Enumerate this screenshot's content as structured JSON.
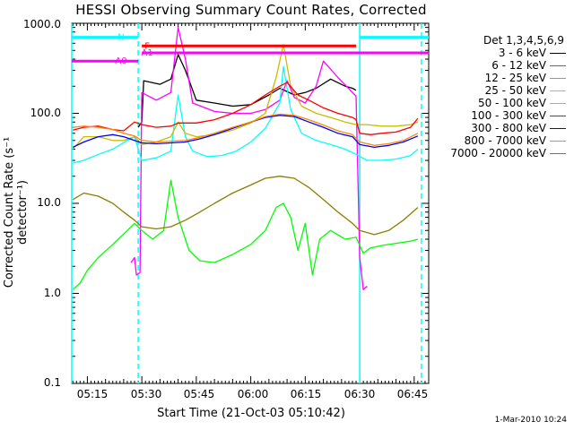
{
  "chart_data": {
    "type": "line",
    "title": "HESSI Observing Summary Count Rates, Corrected",
    "xlabel": "Start Time (21-Oct-03 05:10:42)",
    "ylabel": "Corrected Count Rate (s⁻¹ detector⁻¹)",
    "yscale": "log",
    "ylim": [
      0.1,
      1000
    ],
    "xlim": [
      "05:10:42",
      "06:49"
    ],
    "yticks": [
      "1000.0",
      "100.0",
      "10.0",
      "1.0",
      "0.1"
    ],
    "xticks": [
      "05:15",
      "05:30",
      "05:45",
      "06:00",
      "06:15",
      "06:30",
      "06:45"
    ],
    "legend_title": "Det 1,3,4,5,6,9",
    "legend_position": "right, outside plot",
    "grid": false,
    "series": [
      {
        "name": "3 - 6 keV",
        "color": "#000000",
        "points": [
          [
            "05:29",
            70
          ],
          [
            "05:30",
            80
          ],
          [
            "05:30.5",
            230
          ],
          [
            "05:35",
            210
          ],
          [
            "05:38",
            240
          ],
          [
            "05:40",
            450
          ],
          [
            "05:42",
            300
          ],
          [
            "05:45",
            140
          ],
          [
            "05:50",
            130
          ],
          [
            "05:55",
            120
          ],
          [
            "06:00",
            125
          ],
          [
            "06:05",
            160
          ],
          [
            "06:08",
            190
          ],
          [
            "06:12",
            160
          ],
          [
            "06:15",
            170
          ],
          [
            "06:18",
            190
          ],
          [
            "06:22",
            240
          ],
          [
            "06:26",
            200
          ],
          [
            "06:28",
            190
          ],
          [
            "06:29",
            180
          ]
        ]
      },
      {
        "name": "6 - 12 keV",
        "color": "#ff00ff",
        "points": [
          [
            "05:27",
            2.2
          ],
          [
            "05:28",
            2.5
          ],
          [
            "05:28.5",
            1.6
          ],
          [
            "05:29.5",
            1.7
          ],
          [
            "05:30",
            170
          ],
          [
            "05:34",
            140
          ],
          [
            "05:38",
            170
          ],
          [
            "05:40",
            900
          ],
          [
            "05:42",
            400
          ],
          [
            "05:44",
            130
          ],
          [
            "05:50",
            105
          ],
          [
            "05:55",
            100
          ],
          [
            "06:00",
            100
          ],
          [
            "06:04",
            110
          ],
          [
            "06:08",
            140
          ],
          [
            "06:10",
            230
          ],
          [
            "06:12",
            150
          ],
          [
            "06:15",
            130
          ],
          [
            "06:18",
            200
          ],
          [
            "06:20",
            380
          ],
          [
            "06:24",
            250
          ],
          [
            "06:29",
            155
          ],
          [
            "06:30",
            2.5
          ],
          [
            "06:31",
            1.1
          ],
          [
            "06:32",
            1.2
          ]
        ]
      },
      {
        "name": "12 - 25 keV",
        "color": "#00ff00",
        "points": [
          [
            "05:11",
            1.1
          ],
          [
            "05:13",
            1.3
          ],
          [
            "05:15",
            1.8
          ],
          [
            "05:18",
            2.5
          ],
          [
            "05:22",
            3.5
          ],
          [
            "05:26",
            5
          ],
          [
            "05:28",
            6
          ],
          [
            "05:30",
            5
          ],
          [
            "05:33",
            4
          ],
          [
            "05:36",
            5
          ],
          [
            "05:38",
            18
          ],
          [
            "05:40",
            7
          ],
          [
            "05:43",
            3
          ],
          [
            "05:46",
            2.3
          ],
          [
            "05:50",
            2.2
          ],
          [
            "05:55",
            2.7
          ],
          [
            "06:00",
            3.5
          ],
          [
            "06:04",
            5
          ],
          [
            "06:07",
            9
          ],
          [
            "06:09",
            10
          ],
          [
            "06:11",
            7
          ],
          [
            "06:13",
            3
          ],
          [
            "06:15",
            6
          ],
          [
            "06:17",
            1.6
          ],
          [
            "06:19",
            4
          ],
          [
            "06:22",
            5
          ],
          [
            "06:26",
            4
          ],
          [
            "06:29",
            4.2
          ],
          [
            "06:31",
            2.8
          ],
          [
            "06:33",
            3.2
          ],
          [
            "06:36",
            3.4
          ],
          [
            "06:40",
            3.6
          ],
          [
            "06:44",
            3.8
          ],
          [
            "06:46",
            4
          ]
        ]
      },
      {
        "name": "25 - 50 keV",
        "color": "#00ffff",
        "points": [
          [
            "05:11",
            28
          ],
          [
            "05:14",
            30
          ],
          [
            "05:18",
            35
          ],
          [
            "05:22",
            40
          ],
          [
            "05:26",
            50
          ],
          [
            "05:28",
            55
          ],
          [
            "05:30",
            30
          ],
          [
            "05:34",
            32
          ],
          [
            "05:38",
            38
          ],
          [
            "05:40",
            160
          ],
          [
            "05:42",
            55
          ],
          [
            "05:44",
            38
          ],
          [
            "05:48",
            33
          ],
          [
            "05:52",
            34
          ],
          [
            "05:56",
            38
          ],
          [
            "06:00",
            48
          ],
          [
            "06:04",
            68
          ],
          [
            "06:08",
            130
          ],
          [
            "06:09",
            330
          ],
          [
            "06:11",
            110
          ],
          [
            "06:14",
            60
          ],
          [
            "06:18",
            50
          ],
          [
            "06:22",
            45
          ],
          [
            "06:26",
            40
          ],
          [
            "06:29",
            35
          ],
          [
            "06:32",
            30
          ],
          [
            "06:36",
            30
          ],
          [
            "06:40",
            31
          ],
          [
            "06:44",
            34
          ],
          [
            "06:46",
            40
          ]
        ]
      },
      {
        "name": "50 - 100 keV",
        "color": "#ccbb00",
        "points": [
          [
            "05:11",
            40
          ],
          [
            "05:14",
            55
          ],
          [
            "05:18",
            55
          ],
          [
            "05:22",
            50
          ],
          [
            "05:25",
            50
          ],
          [
            "05:28",
            55
          ],
          [
            "05:30",
            45
          ],
          [
            "05:34",
            48
          ],
          [
            "05:38",
            55
          ],
          [
            "05:40",
            80
          ],
          [
            "05:42",
            60
          ],
          [
            "05:45",
            55
          ],
          [
            "05:50",
            58
          ],
          [
            "05:55",
            65
          ],
          [
            "06:00",
            78
          ],
          [
            "06:04",
            100
          ],
          [
            "06:07",
            250
          ],
          [
            "06:09",
            580
          ],
          [
            "06:11",
            200
          ],
          [
            "06:14",
            120
          ],
          [
            "06:18",
            100
          ],
          [
            "06:22",
            90
          ],
          [
            "06:26",
            80
          ],
          [
            "06:29",
            75
          ],
          [
            "06:32",
            75
          ],
          [
            "06:36",
            72
          ],
          [
            "06:40",
            72
          ],
          [
            "06:44",
            75
          ],
          [
            "06:46",
            80
          ]
        ]
      },
      {
        "name": "100 - 300 keV",
        "color": "#ff0000",
        "points": [
          [
            "05:11",
            65
          ],
          [
            "05:14",
            70
          ],
          [
            "05:18",
            72
          ],
          [
            "05:22",
            66
          ],
          [
            "05:25",
            64
          ],
          [
            "05:28",
            80
          ],
          [
            "05:30",
            75
          ],
          [
            "05:34",
            70
          ],
          [
            "05:38",
            72
          ],
          [
            "05:40",
            78
          ],
          [
            "05:45",
            78
          ],
          [
            "05:50",
            85
          ],
          [
            "05:55",
            100
          ],
          [
            "06:00",
            125
          ],
          [
            "06:04",
            160
          ],
          [
            "06:08",
            200
          ],
          [
            "06:10",
            220
          ],
          [
            "06:13",
            160
          ],
          [
            "06:16",
            140
          ],
          [
            "06:20",
            115
          ],
          [
            "06:24",
            100
          ],
          [
            "06:28",
            90
          ],
          [
            "06:29",
            85
          ],
          [
            "06:30",
            60
          ],
          [
            "06:33",
            58
          ],
          [
            "06:36",
            60
          ],
          [
            "06:40",
            62
          ],
          [
            "06:44",
            70
          ],
          [
            "06:46",
            88
          ]
        ]
      },
      {
        "name": "300 - 800 keV",
        "color": "#0000ff",
        "points": [
          [
            "05:11",
            42
          ],
          [
            "05:14",
            48
          ],
          [
            "05:18",
            55
          ],
          [
            "05:22",
            58
          ],
          [
            "05:25",
            55
          ],
          [
            "05:28",
            50
          ],
          [
            "05:30",
            47
          ],
          [
            "05:34",
            46
          ],
          [
            "05:38",
            47
          ],
          [
            "05:42",
            48
          ],
          [
            "05:46",
            52
          ],
          [
            "05:50",
            58
          ],
          [
            "05:55",
            68
          ],
          [
            "06:00",
            80
          ],
          [
            "06:04",
            90
          ],
          [
            "06:08",
            95
          ],
          [
            "06:12",
            92
          ],
          [
            "06:16",
            80
          ],
          [
            "06:20",
            70
          ],
          [
            "06:24",
            60
          ],
          [
            "06:28",
            55
          ],
          [
            "06:30",
            45
          ],
          [
            "06:34",
            42
          ],
          [
            "06:38",
            44
          ],
          [
            "06:42",
            48
          ],
          [
            "06:46",
            56
          ]
        ]
      },
      {
        "name": "800 - 7000 keV",
        "color": "#ff8800",
        "points": [
          [
            "05:11",
            70
          ],
          [
            "05:14",
            72
          ],
          [
            "05:18",
            70
          ],
          [
            "05:22",
            66
          ],
          [
            "05:25",
            60
          ],
          [
            "05:28",
            56
          ],
          [
            "05:30",
            50
          ],
          [
            "05:34",
            48
          ],
          [
            "05:38",
            49
          ],
          [
            "05:42",
            50
          ],
          [
            "05:46",
            54
          ],
          [
            "05:50",
            60
          ],
          [
            "05:55",
            70
          ],
          [
            "06:00",
            80
          ],
          [
            "06:04",
            92
          ],
          [
            "06:08",
            98
          ],
          [
            "06:12",
            95
          ],
          [
            "06:16",
            85
          ],
          [
            "06:20",
            74
          ],
          [
            "06:24",
            64
          ],
          [
            "06:28",
            58
          ],
          [
            "06:30",
            48
          ],
          [
            "06:34",
            44
          ],
          [
            "06:38",
            46
          ],
          [
            "06:42",
            50
          ],
          [
            "06:46",
            60
          ]
        ]
      },
      {
        "name": "7000 - 20000 keV",
        "color": "#8b7d00",
        "points": [
          [
            "05:11",
            11
          ],
          [
            "05:14",
            13
          ],
          [
            "05:18",
            12
          ],
          [
            "05:22",
            10
          ],
          [
            "05:25",
            8
          ],
          [
            "05:28",
            6.5
          ],
          [
            "05:30",
            5.5
          ],
          [
            "05:34",
            5.2
          ],
          [
            "05:38",
            5.5
          ],
          [
            "05:42",
            6.5
          ],
          [
            "05:46",
            8
          ],
          [
            "05:50",
            10
          ],
          [
            "05:55",
            13
          ],
          [
            "06:00",
            16
          ],
          [
            "06:04",
            19
          ],
          [
            "06:08",
            20
          ],
          [
            "06:12",
            19
          ],
          [
            "06:16",
            15
          ],
          [
            "06:20",
            11
          ],
          [
            "06:24",
            8
          ],
          [
            "06:28",
            6
          ],
          [
            "06:30",
            5
          ],
          [
            "06:34",
            4.5
          ],
          [
            "06:38",
            5
          ],
          [
            "06:42",
            6.5
          ],
          [
            "06:46",
            9
          ]
        ]
      }
    ],
    "state_bars": [
      {
        "label": "N",
        "color": "#00ffff",
        "y": 700,
        "segments": [
          [
            "05:10:42",
            "05:29"
          ],
          [
            "06:30",
            "06:49"
          ]
        ]
      },
      {
        "label": "F",
        "color": "#ff0000",
        "y": 560,
        "segments": [
          [
            "05:30",
            "06:29"
          ]
        ]
      },
      {
        "label": "A0",
        "color": "#ff00ff",
        "y": 380,
        "segments": [
          [
            "05:10:42",
            "05:29"
          ]
        ]
      },
      {
        "label": "A1",
        "color": "#ff00ff",
        "y": 470,
        "segments": [
          [
            "05:30",
            "06:49"
          ]
        ]
      }
    ],
    "vertical_markers": [
      {
        "time": "05:10:42",
        "color": "#00ffff",
        "style": "solid"
      },
      {
        "time": "05:29",
        "color": "#00ffff",
        "style": "dashed"
      },
      {
        "time": "06:30",
        "color": "#00ffff",
        "style": "solid"
      },
      {
        "time": "06:47",
        "color": "#00ffff",
        "style": "dashed"
      }
    ]
  },
  "footer": {
    "timestamp": "1-Mar-2010 10:24"
  }
}
